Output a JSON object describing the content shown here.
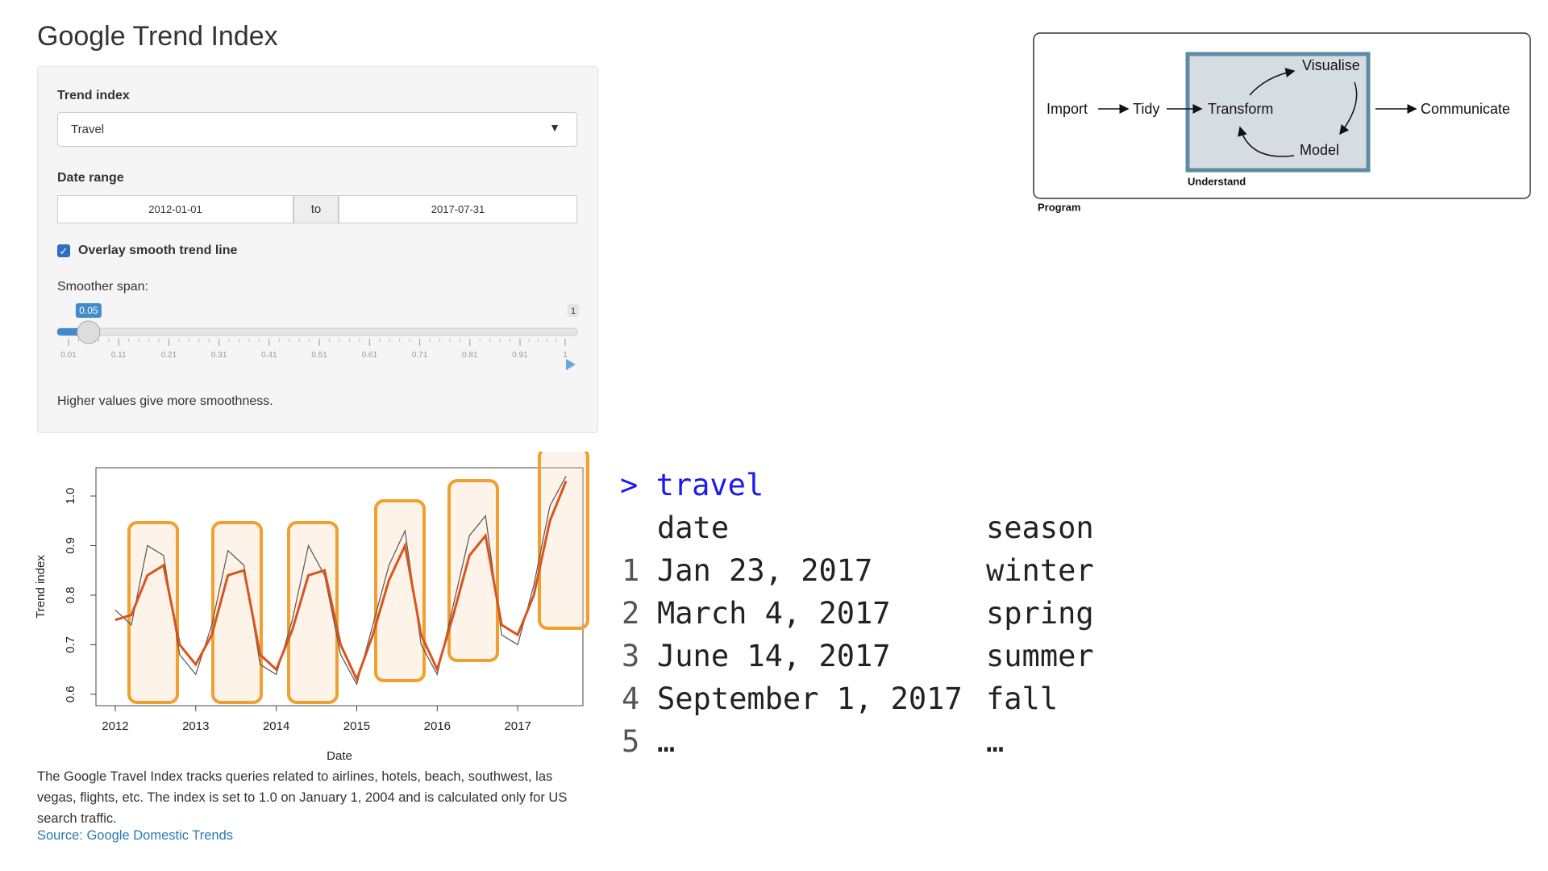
{
  "title": "Google Trend Index",
  "sidebar": {
    "trend_index": {
      "label": "Trend index",
      "selected": "Travel"
    },
    "date_range": {
      "label": "Date range",
      "start": "2012-01-01",
      "separator": "to",
      "end": "2017-07-31"
    },
    "smooth": {
      "label": "Overlay smooth trend line",
      "checked": true
    },
    "span": {
      "label": "Smoother span:",
      "value": 0.05,
      "max": 1,
      "ticks": [
        0.01,
        0.11,
        0.21,
        0.31,
        0.41,
        0.51,
        0.61,
        0.71,
        0.81,
        0.91,
        1
      ],
      "help": "Higher values give more smoothness."
    }
  },
  "chart": {
    "type": "line",
    "xlabel": "Date",
    "ylabel": "Trend index",
    "x": [
      2012.0,
      2012.2,
      2012.4,
      2012.6,
      2012.8,
      2013.0,
      2013.2,
      2013.4,
      2013.6,
      2013.8,
      2014.0,
      2014.2,
      2014.4,
      2014.6,
      2014.8,
      2015.0,
      2015.2,
      2015.4,
      2015.6,
      2015.8,
      2016.0,
      2016.2,
      2016.4,
      2016.6,
      2016.8,
      2017.0,
      2017.2,
      2017.4,
      2017.6
    ],
    "series": [
      {
        "color": "#555555",
        "values": [
          0.77,
          0.74,
          0.9,
          0.88,
          0.68,
          0.64,
          0.74,
          0.89,
          0.86,
          0.66,
          0.64,
          0.75,
          0.9,
          0.84,
          0.68,
          0.62,
          0.74,
          0.86,
          0.93,
          0.7,
          0.64,
          0.78,
          0.92,
          0.96,
          0.72,
          0.7,
          0.82,
          0.98,
          1.04
        ]
      },
      {
        "color": "#d9541e",
        "values": [
          0.75,
          0.76,
          0.84,
          0.86,
          0.7,
          0.66,
          0.72,
          0.84,
          0.85,
          0.68,
          0.65,
          0.73,
          0.84,
          0.85,
          0.7,
          0.63,
          0.72,
          0.83,
          0.9,
          0.72,
          0.65,
          0.76,
          0.88,
          0.92,
          0.74,
          0.72,
          0.8,
          0.95,
          1.03
        ]
      }
    ],
    "xlim": [
      2011.76,
      2017.81
    ],
    "xticks": [
      2012,
      2013,
      2014,
      2015,
      2016,
      2017
    ],
    "ylim": [
      0.577,
      1.057
    ],
    "yticks": [
      0.6,
      0.7,
      0.8,
      0.9,
      {
        "value": 1,
        "label": "1.0"
      }
    ]
  },
  "caption": "The Google Travel Index tracks queries related to airlines, hotels, beach, southwest, las vegas, flights, etc. The index is set to 1.0 on January 1, 2004 and is calculated only for US search traffic.",
  "source": "Source: Google Domestic Trends",
  "console": {
    "prompt": ">",
    "command": "travel",
    "columns": [
      "date",
      "season"
    ],
    "rows": [
      [
        "1",
        "Jan 23, 2017",
        "winter"
      ],
      [
        "2",
        "March 4, 2017",
        "spring"
      ],
      [
        "3",
        "June 14, 2017",
        "summer"
      ],
      [
        "4",
        "September 1, 2017",
        "fall"
      ],
      [
        "5",
        "…",
        "…"
      ]
    ]
  },
  "diagram": {
    "nodes": [
      "Import",
      "Tidy",
      "Transform",
      "Visualise",
      "Model",
      "Communicate"
    ],
    "understand": "Understand",
    "program": "Program"
  }
}
